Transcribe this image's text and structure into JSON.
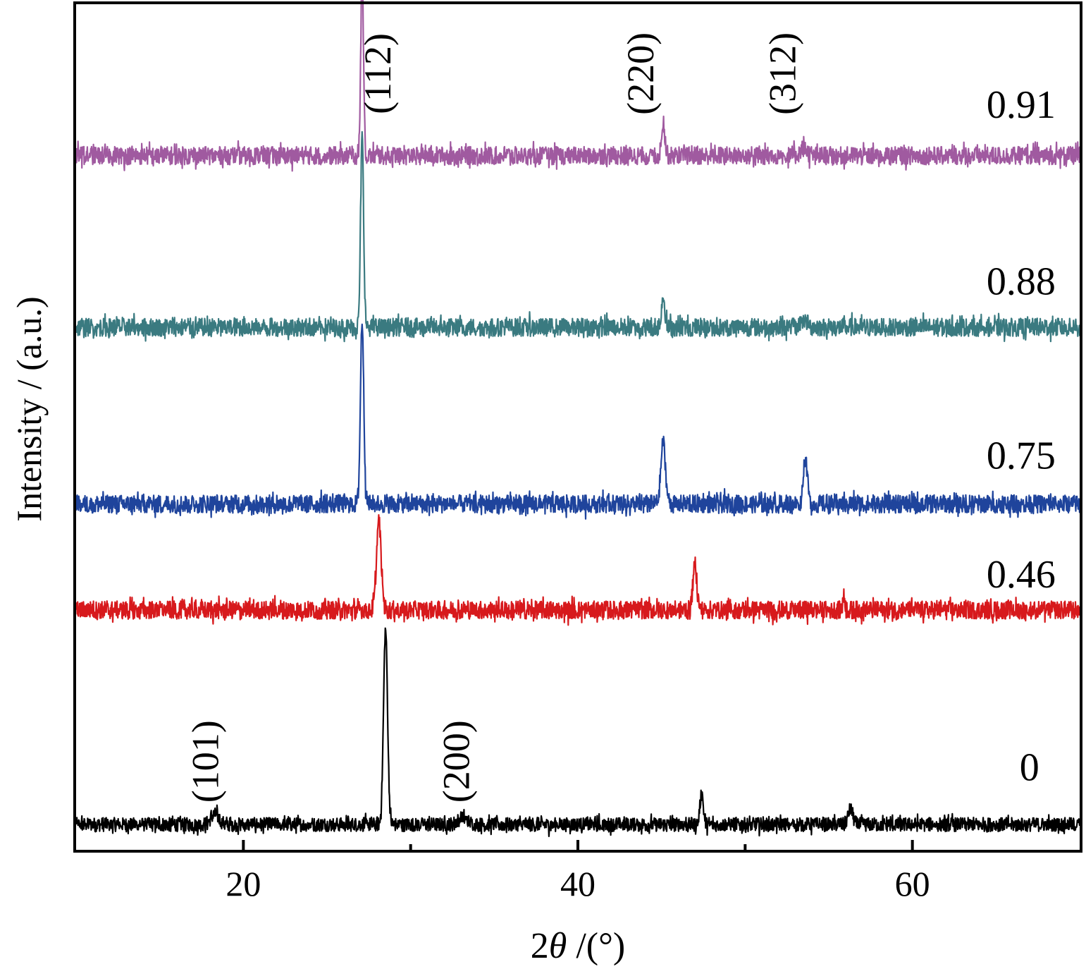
{
  "chart_data": {
    "type": "line",
    "xlabel": "2θ /(°)",
    "xlabel_parts": {
      "pre": "2",
      "italic": "θ",
      "post": " /(°)"
    },
    "ylabel": "Intensity / (a.u.)",
    "xlim": [
      10,
      70
    ],
    "xticks": [
      20,
      40,
      60
    ],
    "xtick_labels": [
      "20",
      "40",
      "60"
    ],
    "x_minor_ticks": [
      30,
      50
    ],
    "yticks": [],
    "grid": false,
    "legend": "none",
    "series": [
      {
        "name": "0",
        "color": "#000000",
        "baseline": 0.0,
        "noise": 0.1,
        "peaks": [
          {
            "x": 28.5,
            "height": 1.55,
            "width": 0.12
          },
          {
            "x": 47.4,
            "height": 0.25,
            "width": 0.1
          },
          {
            "x": 56.3,
            "height": 0.12,
            "width": 0.15
          },
          {
            "x": 18.3,
            "height": 0.08,
            "width": 0.25
          },
          {
            "x": 33.1,
            "height": 0.05,
            "width": 0.3
          }
        ]
      },
      {
        "name": "0.46",
        "color": "#d7191c",
        "baseline": 1.7,
        "noise": 0.13,
        "peaks": [
          {
            "x": 28.1,
            "height": 0.7,
            "width": 0.14
          },
          {
            "x": 47.0,
            "height": 0.36,
            "width": 0.12
          },
          {
            "x": 55.9,
            "height": 0.1,
            "width": 0.08
          }
        ]
      },
      {
        "name": "0.75",
        "color": "#1f449c",
        "baseline": 2.54,
        "noise": 0.13,
        "peaks": [
          {
            "x": 27.1,
            "height": 1.45,
            "width": 0.1
          },
          {
            "x": 45.1,
            "height": 0.48,
            "width": 0.14
          },
          {
            "x": 53.6,
            "height": 0.37,
            "width": 0.12
          }
        ]
      },
      {
        "name": "0.88",
        "color": "#3a7a80",
        "baseline": 3.94,
        "noise": 0.13,
        "peaks": [
          {
            "x": 27.1,
            "height": 1.5,
            "width": 0.09
          },
          {
            "x": 45.1,
            "height": 0.25,
            "width": 0.1
          },
          {
            "x": 53.5,
            "height": 0.06,
            "width": 0.2
          }
        ]
      },
      {
        "name": "0.91",
        "color": "#a05aa0",
        "baseline": 5.3,
        "noise": 0.13,
        "peaks": [
          {
            "x": 27.1,
            "height": 1.45,
            "width": 0.08
          },
          {
            "x": 45.1,
            "height": 0.27,
            "width": 0.1
          },
          {
            "x": 53.5,
            "height": 0.06,
            "width": 0.2
          }
        ]
      }
    ],
    "series_labels": [
      {
        "text": "0.91",
        "x": 66.5,
        "y": 5.6
      },
      {
        "text": "0.88",
        "x": 66.5,
        "y": 4.2
      },
      {
        "text": "0.75",
        "x": 66.5,
        "y": 2.82
      },
      {
        "text": "0.46",
        "x": 66.5,
        "y": 1.88
      },
      {
        "text": "0",
        "x": 67.0,
        "y": 0.35
      }
    ],
    "peak_labels": [
      {
        "text": "(101)",
        "x": 18.5,
        "y": 0.5
      },
      {
        "text": "(200)",
        "x": 33.5,
        "y": 0.5
      },
      {
        "text": "(112)",
        "x": 28.8,
        "y": 5.95
      },
      {
        "text": "(220)",
        "x": 44.5,
        "y": 5.95
      },
      {
        "text": "(312)",
        "x": 53.0,
        "y": 5.95
      }
    ],
    "ylim": [
      -0.2,
      6.5
    ]
  }
}
